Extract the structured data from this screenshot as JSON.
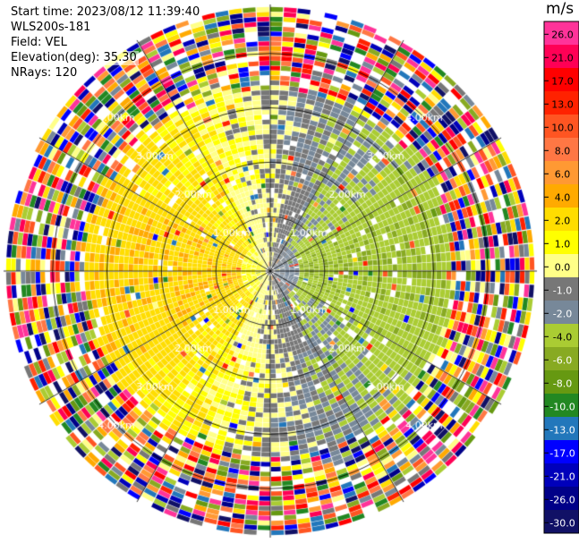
{
  "header": {
    "start_time": "Start time: 2023/08/12 11:39:40",
    "instrument": "WLS200s-181",
    "field": "Field: VEL",
    "elevation": "Elevation(deg): 35.30",
    "nrays": "NRays: 120"
  },
  "colorbar": {
    "unit": "m/s",
    "ticks": [
      "26.0",
      "21.0",
      "17.0",
      "13.0",
      "10.0",
      "8.0",
      "6.0",
      "4.0",
      "2.0",
      "1.0",
      "0.0",
      "-1.0",
      "-2.0",
      "-4.0",
      "-6.0",
      "-8.0",
      "-10.0",
      "-13.0",
      "-17.0",
      "-21.0",
      "-26.0",
      "-30.0"
    ],
    "colors": [
      "#ff3399",
      "#ff0055",
      "#ff0000",
      "#ff2200",
      "#ff5522",
      "#ff7744",
      "#ff9933",
      "#ffaa00",
      "#ffdd00",
      "#ffff00",
      "#ffff88",
      "#777777",
      "#778899",
      "#aacc33",
      "#88aa22",
      "#669911",
      "#228822",
      "#2277bb",
      "#0000ff",
      "#0000bb",
      "#000088",
      "#111166"
    ]
  },
  "chart_data": {
    "type": "heatmap",
    "projection": "polar PPI (plan position indicator)",
    "field": "VEL",
    "n_rays": 120,
    "range_ring_labels": [
      "1.00km",
      "2.00km",
      "3.00km",
      "4.00km"
    ],
    "range_rings_km": [
      1,
      2,
      3,
      4
    ],
    "max_range_km": 4.9,
    "azimuth_spokes_deg": [
      0,
      30,
      60,
      90,
      120,
      150,
      180,
      210,
      240,
      270,
      300,
      330
    ],
    "colorbar_range": [
      -30.0,
      26.0
    ],
    "value_bands": [
      26.0,
      21.0,
      17.0,
      13.0,
      10.0,
      8.0,
      6.0,
      4.0,
      2.0,
      1.0,
      0.0,
      -1.0,
      -2.0,
      -4.0,
      -6.0,
      -8.0,
      -10.0,
      -13.0,
      -17.0,
      -21.0,
      -26.0,
      -30.0
    ],
    "pattern_note": "Positive velocities (yellow) on western half, negative velocities (green) on eastern half, near-zero gray near center, noisy multicolor beyond ~3.2 km"
  }
}
